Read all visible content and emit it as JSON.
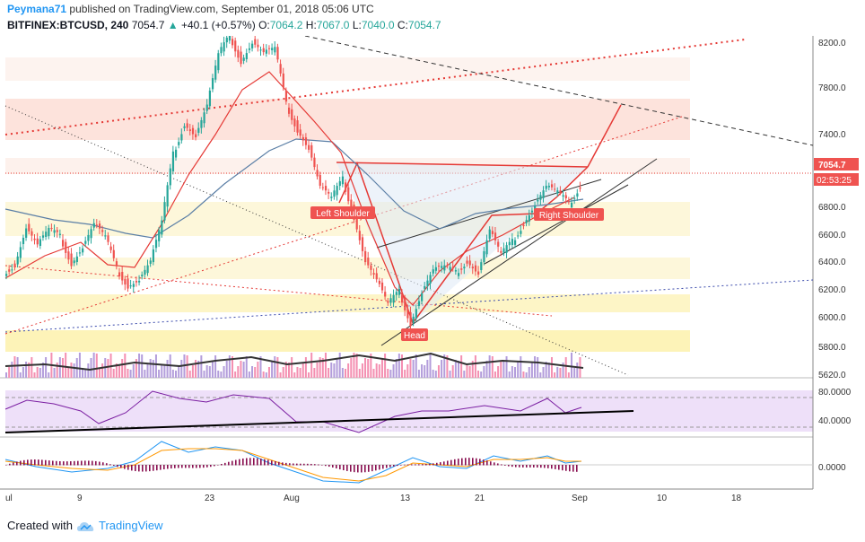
{
  "header": {
    "user": "Peymana71",
    "published_text": "published on TradingView.com, September 01, 2018 05:06 UTC"
  },
  "symbol_line": {
    "symbol": "BITFINEX:BTCUSD, 240",
    "last": "7054.7",
    "change": "+40.1 (+0.57%)",
    "open_label": "O:",
    "open": "7064.2",
    "high_label": "H:",
    "high": "7067.0",
    "low_label": "L:",
    "low": "7040.0",
    "close_label": "C:",
    "close": "7054.7"
  },
  "footer": {
    "created_with": "Created with",
    "brand": "TradingView"
  },
  "colors": {
    "up": "#26a69a",
    "down": "#ef5350",
    "accent": "#2196f3",
    "price_tag": "#ef5350",
    "rsi_band": "#e8d7f9",
    "ema_red": "#e53935",
    "sma_blue": "#5b7fa6"
  },
  "chart_data": {
    "type": "candlestick",
    "price_axis_ticks": [
      8200.0,
      7800.0,
      7400.0,
      6800.0,
      6600.0,
      6400.0,
      6200.0,
      6000.0,
      5800.0,
      5620.0
    ],
    "price_axis_labels": [
      "8200.0",
      "7800.0",
      "7400.0",
      "6800.0",
      "6600.0",
      "6400.0",
      "6200.0",
      "6000.0",
      "5800.0",
      "5620.0"
    ],
    "x_tick_labels": [
      "ul",
      "9",
      "23",
      "Aug",
      "13",
      "21",
      "Sep",
      "10",
      "18"
    ],
    "current_price": "7054.7",
    "countdown": "02:53:25",
    "rsi_ticks": [
      "80.0000",
      "40.0000"
    ],
    "macd_ticks": [
      "0.0000"
    ],
    "annotations": [
      "Left Shoulder",
      "Head",
      "Right Shoulder"
    ],
    "price_series": [
      {
        "t": 0,
        "p": 6350
      },
      {
        "t": 4,
        "p": 6420
      },
      {
        "t": 8,
        "p": 6720
      },
      {
        "t": 12,
        "p": 6580
      },
      {
        "t": 16,
        "p": 6700
      },
      {
        "t": 20,
        "p": 6640
      },
      {
        "t": 24,
        "p": 6430
      },
      {
        "t": 28,
        "p": 6560
      },
      {
        "t": 32,
        "p": 6750
      },
      {
        "t": 36,
        "p": 6640
      },
      {
        "t": 40,
        "p": 6380
      },
      {
        "t": 44,
        "p": 6250
      },
      {
        "t": 48,
        "p": 6300
      },
      {
        "t": 52,
        "p": 6450
      },
      {
        "t": 56,
        "p": 6760
      },
      {
        "t": 60,
        "p": 7300
      },
      {
        "t": 64,
        "p": 7550
      },
      {
        "t": 68,
        "p": 7450
      },
      {
        "t": 72,
        "p": 7700
      },
      {
        "t": 76,
        "p": 8100
      },
      {
        "t": 80,
        "p": 8250
      },
      {
        "t": 84,
        "p": 8050
      },
      {
        "t": 88,
        "p": 8200
      },
      {
        "t": 92,
        "p": 8120
      },
      {
        "t": 96,
        "p": 8150
      },
      {
        "t": 100,
        "p": 7700
      },
      {
        "t": 104,
        "p": 7500
      },
      {
        "t": 108,
        "p": 7350
      },
      {
        "t": 112,
        "p": 7050
      },
      {
        "t": 116,
        "p": 6950
      },
      {
        "t": 120,
        "p": 7100
      },
      {
        "t": 124,
        "p": 6800
      },
      {
        "t": 128,
        "p": 6450
      },
      {
        "t": 132,
        "p": 6300
      },
      {
        "t": 136,
        "p": 6100
      },
      {
        "t": 140,
        "p": 6200
      },
      {
        "t": 144,
        "p": 5950
      },
      {
        "t": 148,
        "p": 6200
      },
      {
        "t": 152,
        "p": 6380
      },
      {
        "t": 156,
        "p": 6400
      },
      {
        "t": 160,
        "p": 6350
      },
      {
        "t": 164,
        "p": 6450
      },
      {
        "t": 168,
        "p": 6350
      },
      {
        "t": 172,
        "p": 6700
      },
      {
        "t": 176,
        "p": 6500
      },
      {
        "t": 180,
        "p": 6600
      },
      {
        "t": 184,
        "p": 6750
      },
      {
        "t": 188,
        "p": 6900
      },
      {
        "t": 192,
        "p": 7050
      },
      {
        "t": 196,
        "p": 7000
      },
      {
        "t": 200,
        "p": 6900
      },
      {
        "t": 204,
        "p": 7050
      }
    ]
  }
}
